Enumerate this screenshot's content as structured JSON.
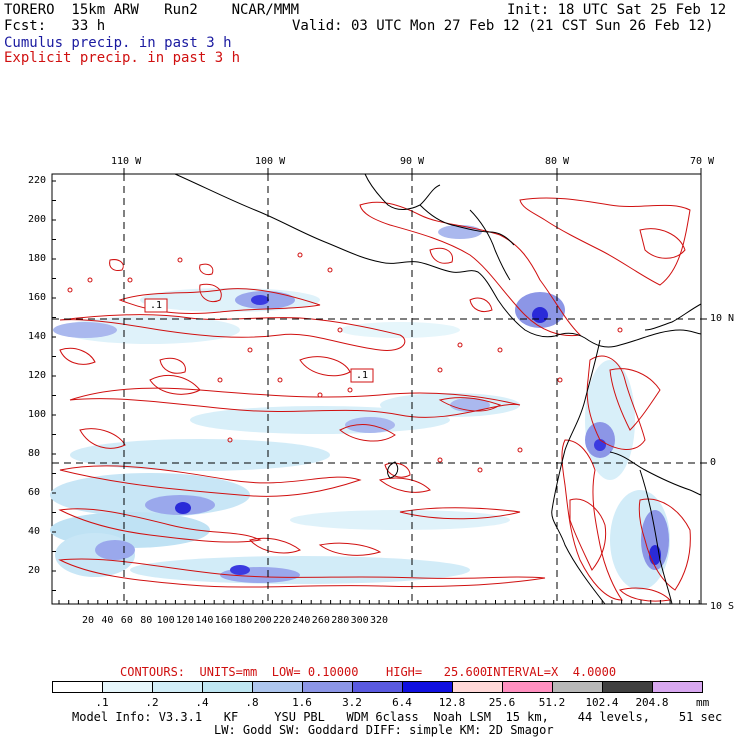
{
  "header": {
    "model": "TORERO  15km ARW   Run2    NCAR/MMM",
    "init": "Init: 18 UTC Sat 25 Feb 12",
    "fcst": "Fcst:   33 h",
    "valid": "Valid: 03 UTC Mon 27 Feb 12 (21 CST Sun 26 Feb 12)",
    "cumulus": "Cumulus precip. in past 3 h",
    "explicit": "Explicit precip. in past 3 h"
  },
  "top_axis": [
    "110 W",
    "100 W",
    "90 W",
    "80 W",
    "70 W"
  ],
  "right_axis": [
    "10 N",
    "0",
    "10 S"
  ],
  "left_axis": [
    "220",
    "200",
    "180",
    "160",
    "140",
    "120",
    "100",
    "80",
    "60",
    "40",
    "20"
  ],
  "bottom_axis": [
    "20",
    "40",
    "60",
    "80",
    "100",
    "120",
    "140",
    "160",
    "180",
    "200",
    "220",
    "240",
    "260",
    "280",
    "300",
    "320"
  ],
  "contour_labels": [
    ".1",
    ".1"
  ],
  "contour_info": {
    "units": "CONTOURS:  UNITS=mm  LOW= 0.10000",
    "high": "HIGH=   25.600",
    "interval": "INTERVAL=X  4.0000"
  },
  "colorbar": {
    "labels": [
      ".1",
      ".2",
      ".4",
      ".8",
      "1.6",
      "3.2",
      "6.4",
      "12.8",
      "25.6",
      "51.2",
      "102.4",
      "204.8"
    ],
    "unit": "mm",
    "colors": [
      "#ffffff",
      "#e6f6fb",
      "#d2eef8",
      "#bfe6f2",
      "#aec6ee",
      "#8c96e6",
      "#5a5ae0",
      "#1010e0",
      "#ffd8d8",
      "#ff90c0",
      "#b8b8b8",
      "#404040",
      "#d8a8f0"
    ]
  },
  "footer": {
    "line1": "Model Info: V3.3.1   KF     YSU PBL   WDM 6class  Noah LSM  15 km,    44 levels,    51 sec",
    "line2": "LW: Godd SW: Goddard DIFF: simple KM: 2D Smagor"
  },
  "colors": {
    "contour": "#d01010",
    "coast": "#000000",
    "cumulus_text": "#1a1aa0",
    "explicit_text": "#d01010"
  }
}
